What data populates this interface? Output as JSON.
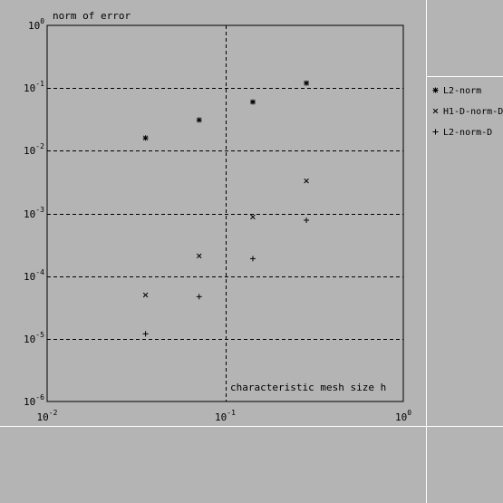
{
  "chart_data": {
    "type": "scatter",
    "title": "",
    "xlabel": "characteristic mesh size h",
    "ylabel": "norm of error",
    "xscale": "log",
    "yscale": "log",
    "xlim": [
      0.01,
      1
    ],
    "ylim": [
      1e-06,
      1
    ],
    "x_ticks": [
      {
        "base": "10",
        "exp": "-2"
      },
      {
        "base": "10",
        "exp": "-1"
      },
      {
        "base": "10",
        "exp": "0"
      }
    ],
    "y_ticks": [
      {
        "base": "10",
        "exp": "0"
      },
      {
        "base": "10",
        "exp": "-1"
      },
      {
        "base": "10",
        "exp": "-2"
      },
      {
        "base": "10",
        "exp": "-3"
      },
      {
        "base": "10",
        "exp": "-4"
      },
      {
        "base": "10",
        "exp": "-5"
      },
      {
        "base": "10",
        "exp": "-6"
      }
    ],
    "grid": {
      "x": [
        0.1
      ],
      "y": [
        0.1,
        0.01,
        0.001,
        0.0001,
        1e-05
      ]
    },
    "legend_position": "right",
    "series": [
      {
        "name": "L2-norm",
        "marker": "*",
        "x": [
          0.0357,
          0.0714,
          0.1429,
          0.2857
        ],
        "y": [
          0.016,
          0.031,
          0.06,
          0.12
        ]
      },
      {
        "name": "H1-D-norm-D",
        "marker": "x",
        "x": [
          0.0357,
          0.0714,
          0.1429,
          0.2857
        ],
        "y": [
          5e-05,
          0.00021,
          0.00088,
          0.0033
        ]
      },
      {
        "name": "L2-norm-D",
        "marker": "+",
        "x": [
          0.0357,
          0.0714,
          0.1429,
          0.2857
        ],
        "y": [
          1.2e-05,
          4.7e-05,
          0.00019,
          0.00078
        ]
      }
    ]
  }
}
